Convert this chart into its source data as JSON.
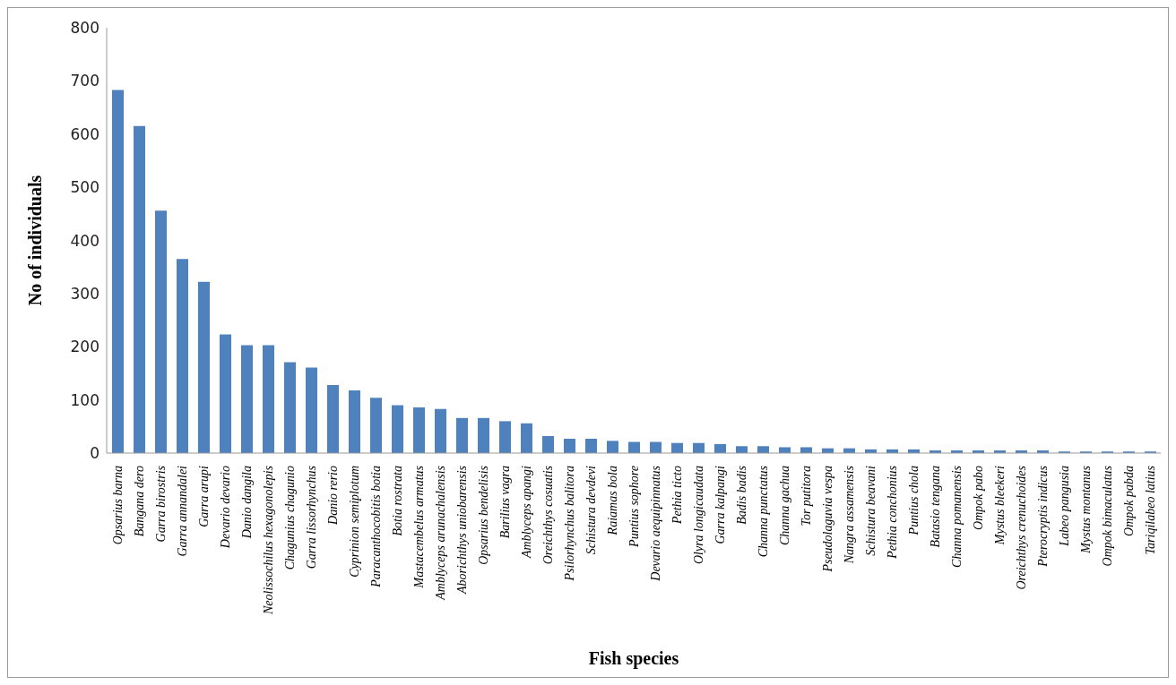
{
  "chart_data": {
    "type": "bar",
    "xlabel": "Fish species",
    "ylabel": "No of individuals",
    "categories": [
      "Opsarius barna",
      "Bangana dero",
      "Garra birostris",
      "Garra annandalei",
      "Garra arupi",
      "Devario devario",
      "Danio dangila",
      "Neolissochilus hexagonolepis",
      "Chagunius chagunio",
      "Garra lissorhynchus",
      "Danio rerio",
      "Cyprinion semiplotum",
      "Paracanthocobitis botia",
      "Botia rostrata",
      "Mastacembelus armatus",
      "Amblyceps arunachalensis",
      "Aborichthys uniobarensis",
      "Opsarius bendelisis",
      "Barilius vagra",
      "Amblyceps apangi",
      "Oreichthys cosuatis",
      "Psilorhynchus balitora",
      "Schistura devdevi",
      "Raiamas bola",
      "Puntius sophore",
      "Devario aequipinnatus",
      "Pethia ticto",
      "Olyra longicaudata",
      "Garra kalpangi",
      "Badis badis",
      "Channa punctatus",
      "Channa gachua",
      "Tor putitora",
      "Pseudolaguvia vespa",
      "Nangra assamensis",
      "Schistura beavani",
      "Pethia conchonius",
      "Puntius chola",
      "Batasio tengana",
      "Channa pomanensis",
      "Ompok pabo",
      "Mystus bleekeri",
      "Oreichthys crenuchoides",
      "Pterocryptis indicus",
      "Labeo pangusia",
      "Mystus montanus",
      "Ompok bimaculatus",
      "Ompok pabda",
      "Tariqilabeo latius"
    ],
    "values": [
      683,
      615,
      456,
      365,
      322,
      223,
      203,
      203,
      171,
      161,
      128,
      118,
      104,
      90,
      86,
      83,
      66,
      66,
      60,
      56,
      32,
      27,
      27,
      23,
      21,
      21,
      19,
      19,
      17,
      13,
      13,
      11,
      11,
      9,
      9,
      7,
      7,
      7,
      5,
      5,
      5,
      5,
      5,
      5,
      3,
      3,
      3,
      3,
      3
    ],
    "color": "#4f81bd",
    "ylim": [
      0,
      800
    ],
    "yticks": [
      0,
      100,
      200,
      300,
      400,
      500,
      600,
      700,
      800
    ],
    "grid": false
  }
}
